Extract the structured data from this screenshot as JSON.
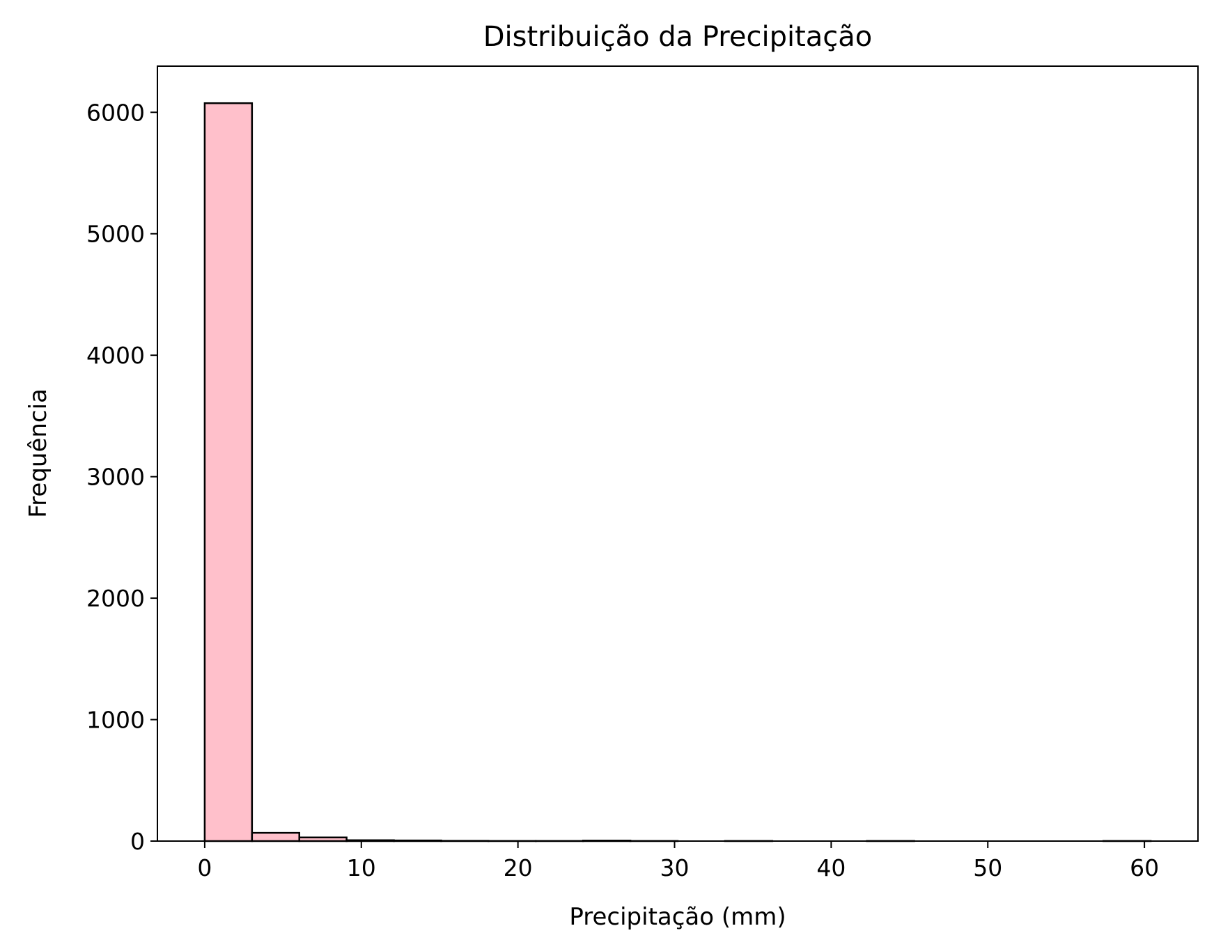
{
  "chart_data": {
    "type": "bar",
    "title": "Distribuição da Precipitação",
    "xlabel": "Precipitação (mm)",
    "ylabel": "Frequência",
    "bins": [
      {
        "x0": 0.0,
        "x1": 3.02,
        "count": 6075
      },
      {
        "x0": 3.02,
        "x1": 6.04,
        "count": 68
      },
      {
        "x0": 6.04,
        "x1": 9.06,
        "count": 30
      },
      {
        "x0": 9.06,
        "x1": 12.08,
        "count": 7
      },
      {
        "x0": 12.08,
        "x1": 15.1,
        "count": 5
      },
      {
        "x0": 15.1,
        "x1": 18.12,
        "count": 2
      },
      {
        "x0": 18.12,
        "x1": 21.14,
        "count": 1
      },
      {
        "x0": 21.14,
        "x1": 24.16,
        "count": 1
      },
      {
        "x0": 24.16,
        "x1": 27.18,
        "count": 4
      },
      {
        "x0": 27.18,
        "x1": 30.2,
        "count": 1
      },
      {
        "x0": 30.2,
        "x1": 33.22,
        "count": 0
      },
      {
        "x0": 33.22,
        "x1": 36.24,
        "count": 1
      },
      {
        "x0": 36.24,
        "x1": 39.26,
        "count": 0
      },
      {
        "x0": 39.26,
        "x1": 42.28,
        "count": 0
      },
      {
        "x0": 42.28,
        "x1": 45.3,
        "count": 1
      },
      {
        "x0": 45.3,
        "x1": 48.32,
        "count": 0
      },
      {
        "x0": 48.32,
        "x1": 51.34,
        "count": 0
      },
      {
        "x0": 51.34,
        "x1": 54.36,
        "count": 0
      },
      {
        "x0": 54.36,
        "x1": 57.38,
        "count": 0
      },
      {
        "x0": 57.38,
        "x1": 60.4,
        "count": 1
      }
    ],
    "xlim": [
      -3.02,
      63.42
    ],
    "ylim": [
      0,
      6380
    ],
    "xticks": [
      0,
      10,
      20,
      30,
      40,
      50,
      60
    ],
    "xtick_labels": [
      "0",
      "10",
      "20",
      "30",
      "40",
      "50",
      "60"
    ],
    "yticks": [
      0,
      1000,
      2000,
      3000,
      4000,
      5000,
      6000
    ],
    "ytick_labels": [
      "0",
      "1000",
      "2000",
      "3000",
      "4000",
      "5000",
      "6000"
    ],
    "bar_color": "#ffc0cb",
    "edge_color": "#000000",
    "grid": false,
    "legend": "none"
  }
}
